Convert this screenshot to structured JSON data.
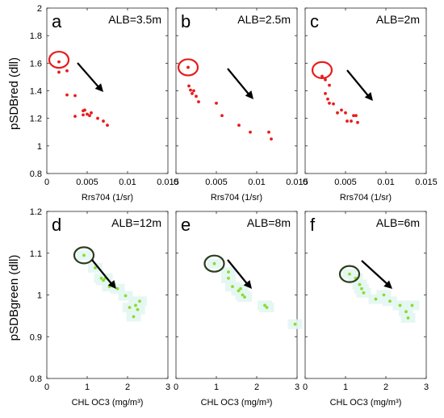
{
  "figure": {
    "top_ylabel": "pSDBred (dll)",
    "bottom_ylabel": "pSDBgreen (dll)"
  },
  "colors": {
    "red": "#e81c1c",
    "green": "#8ddb2e",
    "green_circle": "#2b3d1e",
    "arrow": "#000000"
  },
  "chart_data": [
    {
      "panel": "a",
      "type": "scatter",
      "annotation": "ALB=3.5m",
      "xlabel": "Rrs704 (1/sr)",
      "ylabel": "pSDBred (dll)",
      "xlim": [
        0,
        0.015
      ],
      "ylim": [
        0.8,
        2
      ],
      "xticks": [
        "0",
        "0.005",
        "0.01",
        "0.015"
      ],
      "yticks": [
        "0.8",
        "1",
        "1.2",
        "1.4",
        "1.6",
        "1.8",
        "2"
      ],
      "color": "#e81c1c",
      "highlight": {
        "x": 0.0015,
        "y": 1.625
      },
      "points": [
        [
          0.0015,
          1.61
        ],
        [
          0.0015,
          1.535
        ],
        [
          0.0025,
          1.545
        ],
        [
          0.0025,
          1.37
        ],
        [
          0.0035,
          1.365
        ],
        [
          0.0035,
          1.215
        ],
        [
          0.0045,
          1.255
        ],
        [
          0.0047,
          1.26
        ],
        [
          0.0045,
          1.225
        ],
        [
          0.005,
          1.23
        ],
        [
          0.0053,
          1.22
        ],
        [
          0.0055,
          1.24
        ],
        [
          0.0063,
          1.2
        ],
        [
          0.007,
          1.18
        ],
        [
          0.0075,
          1.15
        ]
      ]
    },
    {
      "panel": "b",
      "type": "scatter",
      "annotation": "ALB=2.5m",
      "xlabel": "Rrs704 (1/sr)",
      "ylabel": "",
      "xlim": [
        0,
        0.015
      ],
      "ylim": [
        0.8,
        2
      ],
      "xticks": [
        "0",
        "0.005",
        "0.01",
        "0.015"
      ],
      "yticks": [],
      "color": "#e81c1c",
      "highlight": {
        "x": 0.0015,
        "y": 1.57
      },
      "points": [
        [
          0.0015,
          1.57
        ],
        [
          0.0016,
          1.435
        ],
        [
          0.0018,
          1.405
        ],
        [
          0.002,
          1.38
        ],
        [
          0.0022,
          1.4
        ],
        [
          0.0025,
          1.36
        ],
        [
          0.0028,
          1.32
        ],
        [
          0.005,
          1.31
        ],
        [
          0.0057,
          1.22
        ],
        [
          0.0078,
          1.15
        ],
        [
          0.0092,
          1.1
        ],
        [
          0.0115,
          1.1
        ],
        [
          0.0118,
          1.05
        ]
      ]
    },
    {
      "panel": "c",
      "type": "scatter",
      "annotation": "ALB=2m",
      "xlabel": "Rrs704 (1/sr)",
      "ylabel": "",
      "xlim": [
        0,
        0.015
      ],
      "ylim": [
        0.8,
        2
      ],
      "xticks": [
        "0",
        "0.005",
        "0.01",
        "0.015"
      ],
      "yticks": [],
      "color": "#e81c1c",
      "highlight": {
        "x": 0.0021,
        "y": 1.55
      },
      "points": [
        [
          0.0021,
          1.505
        ],
        [
          0.0025,
          1.48
        ],
        [
          0.003,
          1.44
        ],
        [
          0.0025,
          1.38
        ],
        [
          0.0028,
          1.34
        ],
        [
          0.003,
          1.31
        ],
        [
          0.0035,
          1.305
        ],
        [
          0.004,
          1.24
        ],
        [
          0.0045,
          1.26
        ],
        [
          0.005,
          1.24
        ],
        [
          0.0052,
          1.18
        ],
        [
          0.0057,
          1.18
        ],
        [
          0.006,
          1.22
        ],
        [
          0.0063,
          1.22
        ],
        [
          0.0065,
          1.17
        ]
      ]
    },
    {
      "panel": "d",
      "type": "scatter",
      "annotation": "ALB=12m",
      "xlabel": "CHL OC3 (mg/m³)",
      "ylabel": "pSDBgreen (dll)",
      "xlim": [
        0,
        3
      ],
      "ylim": [
        0.8,
        1.2
      ],
      "xticks": [
        "0",
        "1",
        "2",
        "3"
      ],
      "yticks": [
        "0.8",
        "0.9",
        "1",
        "1.1",
        "1.2"
      ],
      "color": "#8ddb2e",
      "highlight": {
        "x": 0.92,
        "y": 1.095
      },
      "points": [
        [
          0.92,
          1.095
        ],
        [
          1.2,
          1.065
        ],
        [
          1.35,
          1.04
        ],
        [
          1.4,
          1.035
        ],
        [
          1.45,
          1.04
        ],
        [
          1.55,
          1.02
        ],
        [
          1.75,
          1.015
        ],
        [
          1.95,
          0.998
        ],
        [
          2.05,
          0.97
        ],
        [
          2.2,
          0.975
        ],
        [
          2.25,
          0.965
        ],
        [
          2.3,
          0.985
        ],
        [
          2.15,
          0.948
        ]
      ]
    },
    {
      "panel": "e",
      "type": "scatter",
      "annotation": "ALB=8m",
      "xlabel": "CHL OC3 (mg/m³)",
      "ylabel": "",
      "xlim": [
        0,
        3
      ],
      "ylim": [
        0.8,
        1.2
      ],
      "xticks": [
        "0",
        "1",
        "2",
        "3"
      ],
      "yticks": [],
      "color": "#8ddb2e",
      "highlight": {
        "x": 0.95,
        "y": 1.075
      },
      "points": [
        [
          0.95,
          1.075
        ],
        [
          1.3,
          1.055
        ],
        [
          1.3,
          1.04
        ],
        [
          1.4,
          1.02
        ],
        [
          1.55,
          1.01
        ],
        [
          1.6,
          1.015
        ],
        [
          1.65,
          1.0
        ],
        [
          1.7,
          0.995
        ],
        [
          2.2,
          0.975
        ],
        [
          2.25,
          0.97
        ],
        [
          2.95,
          0.93
        ]
      ]
    },
    {
      "panel": "f",
      "type": "scatter",
      "annotation": "ALB=6m",
      "xlabel": "CHL OC3 (mg/m³)",
      "ylabel": "",
      "xlim": [
        0,
        3
      ],
      "ylim": [
        0.8,
        1.2
      ],
      "xticks": [
        "0",
        "1",
        "2",
        "3"
      ],
      "yticks": [],
      "color": "#8ddb2e",
      "highlight": {
        "x": 1.1,
        "y": 1.05
      },
      "points": [
        [
          1.1,
          1.05
        ],
        [
          1.25,
          1.04
        ],
        [
          1.35,
          1.025
        ],
        [
          1.4,
          1.015
        ],
        [
          1.45,
          1.005
        ],
        [
          1.75,
          0.99
        ],
        [
          1.95,
          1.0
        ],
        [
          2.1,
          0.985
        ],
        [
          2.35,
          0.975
        ],
        [
          2.5,
          0.96
        ],
        [
          2.55,
          0.945
        ],
        [
          2.65,
          0.975
        ]
      ]
    }
  ]
}
